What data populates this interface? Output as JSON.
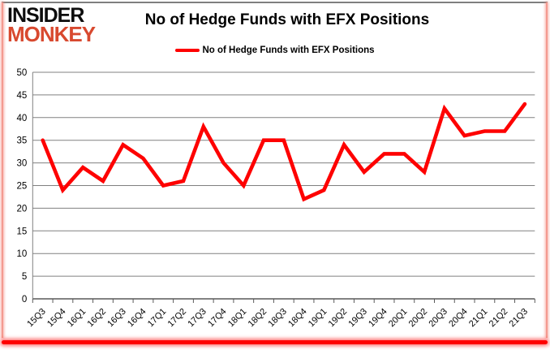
{
  "brand": {
    "line1": "INSIDER",
    "line2": "MONKEY"
  },
  "header": {
    "title": "No of Hedge Funds with EFX Positions"
  },
  "legend": {
    "label": "No of Hedge Funds with EFX Positions"
  },
  "colors": {
    "series_red": "#fe0000",
    "logo_red": "#d8492f",
    "gridline": "#808080",
    "axis": "#595959",
    "text": "#000000",
    "frame_pink": "#f49a90"
  },
  "chart_data": {
    "type": "line",
    "title": "No of Hedge Funds with EFX Positions",
    "categories": [
      "15Q3",
      "15Q4",
      "16Q1",
      "16Q2",
      "16Q3",
      "16Q4",
      "17Q1",
      "17Q2",
      "17Q3",
      "17Q4",
      "18Q1",
      "18Q2",
      "18Q3",
      "18Q4",
      "19Q1",
      "19Q2",
      "19Q3",
      "19Q4",
      "20Q1",
      "20Q2",
      "20Q3",
      "20Q4",
      "21Q1",
      "21Q2",
      "21Q3"
    ],
    "series": [
      {
        "name": "No of Hedge Funds with EFX Positions",
        "color": "#fe0000",
        "values": [
          35,
          24,
          29,
          26,
          34,
          31,
          25,
          26,
          38,
          30,
          25,
          35,
          35,
          22,
          24,
          34,
          28,
          32,
          32,
          28,
          42,
          36,
          37,
          37,
          43
        ]
      }
    ],
    "xlabel": "",
    "ylabel": "",
    "ylim": [
      0,
      50
    ],
    "yticks": [
      0,
      5,
      10,
      15,
      20,
      25,
      30,
      35,
      40,
      45,
      50
    ],
    "grid": true,
    "legend_position": "top-center"
  }
}
